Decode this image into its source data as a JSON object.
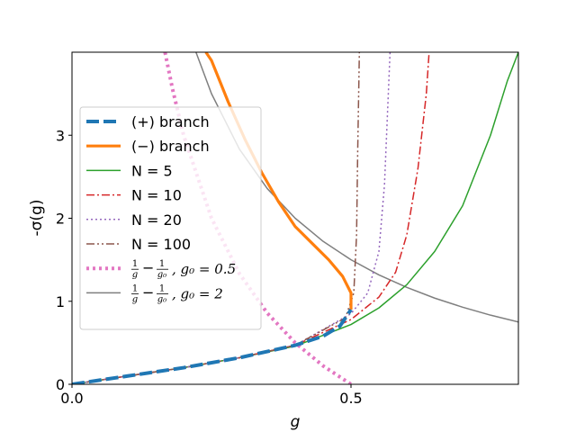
{
  "chart_data": {
    "type": "line",
    "xlabel": "g",
    "ylabel": "-σ(g)",
    "xlim": [
      0.0,
      0.8
    ],
    "ylim": [
      0.0,
      4.0
    ],
    "xticks": [
      {
        "value": 0.0,
        "label": "0.0"
      },
      {
        "value": 0.5,
        "label": "0.5"
      }
    ],
    "yticks": [
      {
        "value": 0,
        "label": "0"
      },
      {
        "value": 1,
        "label": "1"
      },
      {
        "value": 2,
        "label": "2"
      },
      {
        "value": 3,
        "label": "3"
      }
    ],
    "grid": false,
    "legend_position": "left",
    "series": [
      {
        "key": "plus",
        "name": "(+) branch",
        "color": "#1f77b4",
        "dash": "dash",
        "width": 4,
        "points": [
          [
            0,
            0.0
          ],
          [
            0.1,
            0.1
          ],
          [
            0.2,
            0.2
          ],
          [
            0.3,
            0.32
          ],
          [
            0.4,
            0.47
          ],
          [
            0.45,
            0.58
          ],
          [
            0.48,
            0.7
          ],
          [
            0.5,
            0.9
          ]
        ]
      },
      {
        "key": "minus",
        "name": "(−) branch",
        "color": "#ff7f0e",
        "dash": "solid",
        "width": 3.2,
        "points": [
          [
            0.5,
            0.9
          ],
          [
            0.5,
            1.1
          ],
          [
            0.485,
            1.3
          ],
          [
            0.46,
            1.5
          ],
          [
            0.43,
            1.7
          ],
          [
            0.4,
            1.9
          ],
          [
            0.37,
            2.2
          ],
          [
            0.34,
            2.55
          ],
          [
            0.31,
            2.95
          ],
          [
            0.28,
            3.4
          ],
          [
            0.25,
            3.9
          ],
          [
            0.24,
            4.0
          ]
        ]
      },
      {
        "key": "n5",
        "name": "N = 5",
        "color": "#2ca02c",
        "dash": "solid",
        "width": 1.5,
        "points": [
          [
            0,
            0.0
          ],
          [
            0.1,
            0.1
          ],
          [
            0.2,
            0.2
          ],
          [
            0.3,
            0.32
          ],
          [
            0.4,
            0.46
          ],
          [
            0.5,
            0.72
          ],
          [
            0.55,
            0.92
          ],
          [
            0.6,
            1.2
          ],
          [
            0.65,
            1.6
          ],
          [
            0.7,
            2.15
          ],
          [
            0.75,
            3.0
          ],
          [
            0.78,
            3.65
          ],
          [
            0.8,
            4.0
          ]
        ]
      },
      {
        "key": "n10",
        "name": "N = 10",
        "color": "#d62728",
        "dash": "dashdot",
        "width": 1.5,
        "points": [
          [
            0,
            0.0
          ],
          [
            0.1,
            0.1
          ],
          [
            0.2,
            0.2
          ],
          [
            0.3,
            0.32
          ],
          [
            0.4,
            0.47
          ],
          [
            0.5,
            0.78
          ],
          [
            0.55,
            1.05
          ],
          [
            0.58,
            1.35
          ],
          [
            0.6,
            1.8
          ],
          [
            0.62,
            2.6
          ],
          [
            0.635,
            3.5
          ],
          [
            0.64,
            4.0
          ]
        ]
      },
      {
        "key": "n20",
        "name": "N = 20",
        "color": "#9467bd",
        "dash": "dot",
        "width": 1.5,
        "points": [
          [
            0,
            0.0
          ],
          [
            0.1,
            0.1
          ],
          [
            0.2,
            0.2
          ],
          [
            0.3,
            0.32
          ],
          [
            0.4,
            0.47
          ],
          [
            0.5,
            0.85
          ],
          [
            0.53,
            1.1
          ],
          [
            0.55,
            1.6
          ],
          [
            0.56,
            2.4
          ],
          [
            0.565,
            3.2
          ],
          [
            0.57,
            4.0
          ]
        ]
      },
      {
        "key": "n100",
        "name": "N = 100",
        "color": "#8c564b",
        "dash": "dashdotdot",
        "width": 1.5,
        "points": [
          [
            0,
            0.0
          ],
          [
            0.1,
            0.1
          ],
          [
            0.2,
            0.2
          ],
          [
            0.3,
            0.32
          ],
          [
            0.4,
            0.47
          ],
          [
            0.49,
            0.8
          ],
          [
            0.505,
            1.1
          ],
          [
            0.51,
            1.8
          ],
          [
            0.512,
            2.8
          ],
          [
            0.515,
            4.0
          ]
        ]
      },
      {
        "key": "g05",
        "name": "1/g − 1/g0, g0 = 0.5",
        "color": "#e377c2",
        "dash": "dotted-thick",
        "width": 4,
        "points": [
          [
            0.1667,
            4.0
          ],
          [
            0.18,
            3.56
          ],
          [
            0.2,
            3.0
          ],
          [
            0.25,
            2.0
          ],
          [
            0.3,
            1.333
          ],
          [
            0.35,
            0.857
          ],
          [
            0.4,
            0.5
          ],
          [
            0.45,
            0.222
          ],
          [
            0.5,
            0.0
          ]
        ]
      },
      {
        "key": "g2",
        "name": "1/g − 1/g0, g0 = 2",
        "color": "#7f7f7f",
        "dash": "solid",
        "width": 1.5,
        "points": [
          [
            0.2222,
            4.0
          ],
          [
            0.25,
            3.5
          ],
          [
            0.3,
            2.833
          ],
          [
            0.35,
            2.357
          ],
          [
            0.4,
            2.0
          ],
          [
            0.45,
            1.722
          ],
          [
            0.5,
            1.5
          ],
          [
            0.55,
            1.318
          ],
          [
            0.6,
            1.167
          ],
          [
            0.65,
            1.038
          ],
          [
            0.7,
            0.929
          ],
          [
            0.75,
            0.833
          ],
          [
            0.8,
            0.75
          ]
        ]
      }
    ]
  }
}
